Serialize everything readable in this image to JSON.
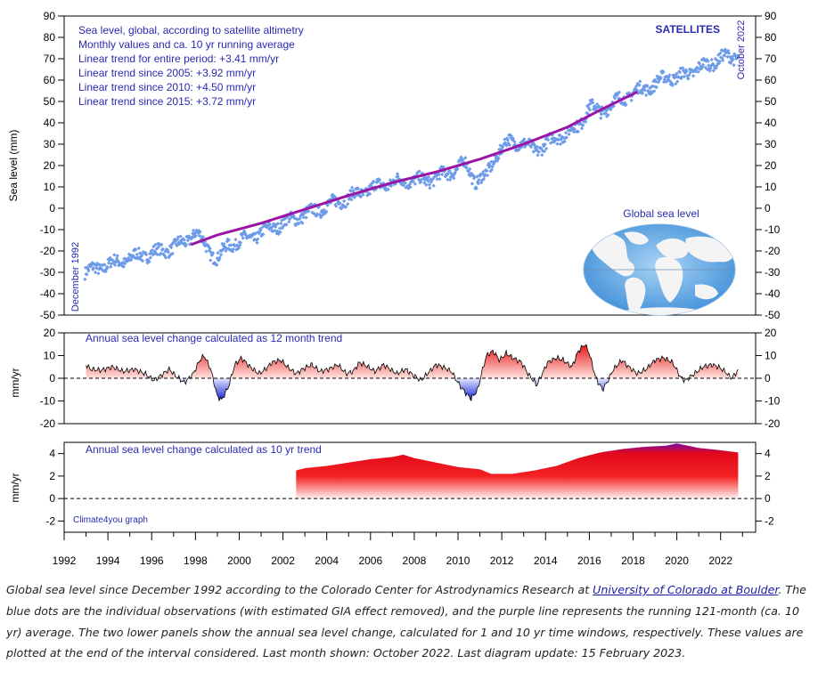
{
  "chart_data": [
    {
      "type": "scatter",
      "panel": "global-sea-level",
      "ylabel": "Sea level (mm)",
      "ylim": [
        -50,
        90
      ],
      "yticks": [
        -50,
        -40,
        -30,
        -20,
        -10,
        0,
        10,
        20,
        30,
        40,
        50,
        60,
        70,
        80,
        90
      ],
      "header_label": "SATELLITES",
      "start_label": "December 1992",
      "end_label": "October 2022",
      "info_lines": [
        "Sea level, global, according to satellite altimetry",
        "Monthly values and ca. 10 yr running average",
        "Linear trend for entire period: +3.41 mm/yr",
        "Linear trend since 2005: +3.92 mm/yr",
        "Linear trend since 2010: +4.50 mm/yr",
        "Linear trend since 2015: +3.72 mm/yr"
      ],
      "inset_label": "Global sea level",
      "series": [
        {
          "name": "Monthly observations",
          "color": "#6d9be8",
          "anchors_x": [
            1992.95,
            1993.5,
            1994.5,
            1995.5,
            1996.5,
            1997.5,
            1998.0,
            1998.5,
            1999.0,
            1999.5,
            2000.5,
            2001.5,
            2002.5,
            2003.5,
            2004.5,
            2005.5,
            2006.5,
            2007.5,
            2008.5,
            2009.5,
            2010.3,
            2010.8,
            2011.3,
            2011.8,
            2012.3,
            2012.9,
            2013.5,
            2014.5,
            2015.5,
            2016.0,
            2016.5,
            2017.2,
            2018.0,
            2019.0,
            2019.6,
            2020.0,
            2020.5,
            2021.0,
            2021.5,
            2022.0,
            2022.5,
            2022.8
          ],
          "anchors_y": [
            -30,
            -28,
            -25,
            -22,
            -20,
            -16,
            -11,
            -18,
            -24,
            -17,
            -14,
            -9,
            -5,
            -1,
            3,
            7,
            11,
            13,
            13,
            16,
            21,
            13,
            15,
            26,
            31,
            31,
            27,
            33,
            38,
            48,
            45,
            50,
            54,
            58,
            62,
            61,
            63,
            66,
            67,
            71,
            70,
            72
          ]
        },
        {
          "name": "121-month running average",
          "color": "#9b14a6",
          "x": [
            1997.8,
            1999,
            2001,
            2003,
            2005,
            2007,
            2009,
            2011,
            2013,
            2015,
            2016.5,
            2017.5,
            2018.2
          ],
          "y": [
            -17,
            -12.5,
            -7,
            -0.5,
            6,
            12,
            17,
            23,
            30,
            38,
            46,
            51,
            54.5
          ]
        }
      ]
    },
    {
      "type": "area",
      "panel": "annual-change-12-month",
      "title": "Annual sea level change calculated as 12 month trend",
      "ylabel": "mm/yr",
      "ylim": [
        -20,
        20
      ],
      "yticks": [
        -20,
        -10,
        0,
        10,
        20
      ],
      "x": [
        1993.0,
        1993.2,
        1993.7,
        1994.2,
        1994.7,
        1995.2,
        1995.7,
        1996.1,
        1996.4,
        1996.8,
        1997.1,
        1997.5,
        1997.9,
        1998.2,
        1998.4,
        1998.7,
        1999.0,
        1999.2,
        1999.5,
        1999.8,
        2000.1,
        2000.5,
        2000.9,
        2001.2,
        2001.5,
        2001.9,
        2002.2,
        2002.6,
        2002.9,
        2003.3,
        2003.7,
        2004.1,
        2004.5,
        2004.9,
        2005.2,
        2005.5,
        2005.9,
        2006.2,
        2006.6,
        2006.9,
        2007.2,
        2007.6,
        2008.0,
        2008.3,
        2008.7,
        2009.0,
        2009.3,
        2009.7,
        2010.0,
        2010.3,
        2010.6,
        2010.9,
        2011.1,
        2011.3,
        2011.6,
        2011.9,
        2012.2,
        2012.5,
        2012.9,
        2013.2,
        2013.6,
        2013.8,
        2014.1,
        2014.5,
        2014.8,
        2015.2,
        2015.5,
        2015.8,
        2016.0,
        2016.3,
        2016.6,
        2016.8,
        2017.1,
        2017.5,
        2017.8,
        2018.2,
        2018.6,
        2019.0,
        2019.4,
        2019.8,
        2020.2,
        2020.4,
        2020.8,
        2021.2,
        2021.6,
        2021.9,
        2022.2,
        2022.5,
        2022.8
      ],
      "y": [
        6,
        4,
        3.5,
        5,
        3,
        4,
        2,
        -1,
        1,
        4,
        1,
        -2,
        2,
        8,
        10,
        4,
        -8,
        -9.5,
        -4,
        6,
        9,
        5,
        2,
        4,
        7,
        8,
        5,
        2,
        4,
        6,
        3,
        4,
        6,
        2,
        3,
        7,
        5,
        3,
        6,
        4,
        2,
        4,
        1,
        -1,
        3,
        6,
        5,
        3,
        -2,
        -6,
        -9,
        -5,
        3,
        10,
        12,
        8,
        11,
        9,
        7,
        2,
        -3,
        1,
        7,
        9,
        8,
        5,
        12,
        15,
        11,
        0,
        -5,
        -2,
        4,
        8,
        5,
        2,
        4,
        8,
        9,
        7,
        0,
        -1,
        2,
        5,
        6,
        5,
        3,
        0,
        3.5
      ]
    },
    {
      "type": "area",
      "panel": "annual-change-10-year",
      "title": "Annual sea level change calculated as 10 yr trend",
      "ylabel": "mm/yr",
      "ylim": [
        -3,
        5
      ],
      "yticks": [
        -2,
        0,
        2,
        4
      ],
      "credit": "Climate4you graph",
      "x": [
        2002.6,
        2003,
        2004,
        2005,
        2006,
        2007,
        2007.5,
        2008,
        2009,
        2010,
        2011,
        2011.5,
        2012.5,
        2013.5,
        2014.5,
        2015.5,
        2016.5,
        2017.5,
        2018.5,
        2019.5,
        2020.0,
        2021,
        2022,
        2022.8
      ],
      "y": [
        2.5,
        2.7,
        2.9,
        3.2,
        3.5,
        3.7,
        3.9,
        3.6,
        3.2,
        2.8,
        2.6,
        2.2,
        2.2,
        2.5,
        2.9,
        3.6,
        4.1,
        4.4,
        4.6,
        4.7,
        4.9,
        4.5,
        4.3,
        4.1
      ]
    }
  ],
  "x_axis": {
    "tick_labels": [
      "1992",
      "1994",
      "1996",
      "1998",
      "2000",
      "2002",
      "2004",
      "2006",
      "2008",
      "2010",
      "2012",
      "2014",
      "2016",
      "2018",
      "2020",
      "2022"
    ],
    "xlim": [
      1992,
      2023.6
    ]
  },
  "caption": {
    "before_link": "Global sea level since December 1992 according to the Colorado Center for Astrodynamics Research at ",
    "link_text": "University of Colorado at Boulder",
    "after_link": ". The blue dots are the individual observations (with estimated GIA effect removed), and the purple line represents the running 121-month (ca. 10 yr) average. The two lower panels show the annual sea level change, calculated for 1 and 10 yr time windows, respectively. These values are plotted at the end of the interval considered. Last month shown: October 2022. Last diagram update: 15 February 2023."
  }
}
